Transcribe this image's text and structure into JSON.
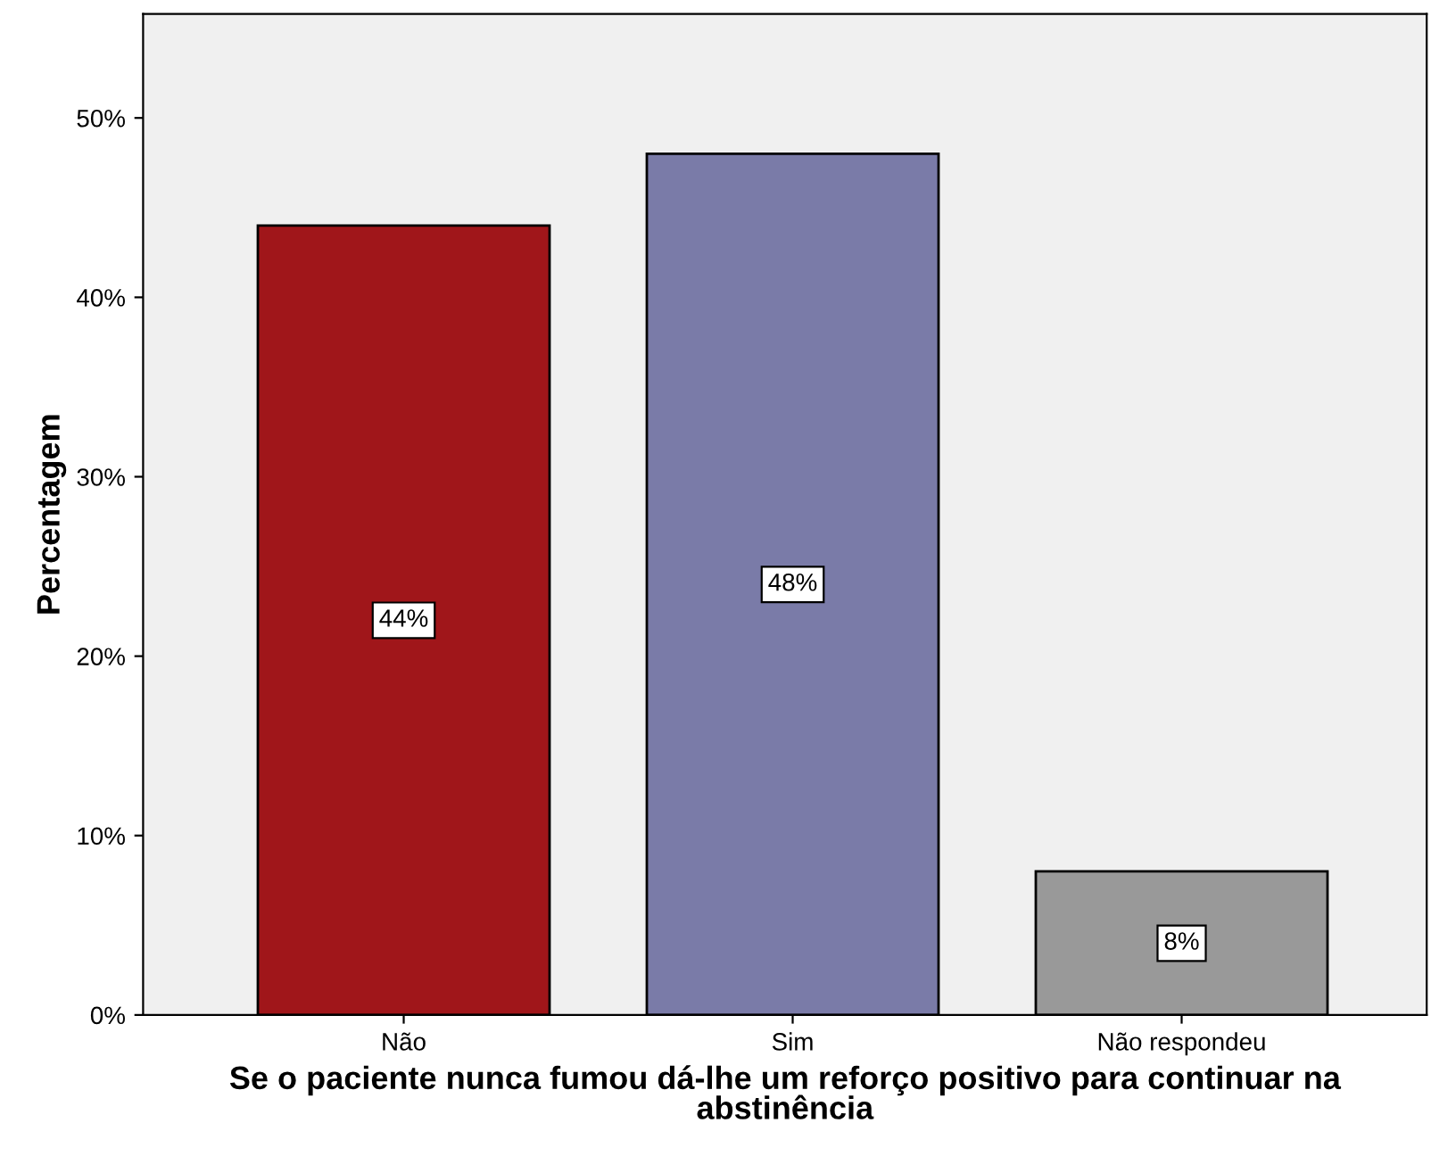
{
  "chart_data": {
    "type": "bar",
    "xlabel": "Se o paciente nunca fumou dá-lhe um reforço positivo para continuar na abstinência",
    "ylabel": "Percentagem",
    "categories": [
      "Não",
      "Sim",
      "Não respondeu"
    ],
    "values": [
      44,
      48,
      8
    ],
    "colors": [
      "#a0161a",
      "#7a7ba8",
      "#999999"
    ],
    "value_labels": [
      "44%",
      "48%",
      "8%"
    ],
    "ylim": [
      0,
      55.8
    ],
    "yticks": [
      {
        "value": 0,
        "label": "0%"
      },
      {
        "value": 10,
        "label": "10%"
      },
      {
        "value": 20,
        "label": "20%"
      },
      {
        "value": 30,
        "label": "30%"
      },
      {
        "value": 40,
        "label": "40%"
      },
      {
        "value": 50,
        "label": "50%"
      }
    ],
    "grid": false,
    "legend": false
  }
}
